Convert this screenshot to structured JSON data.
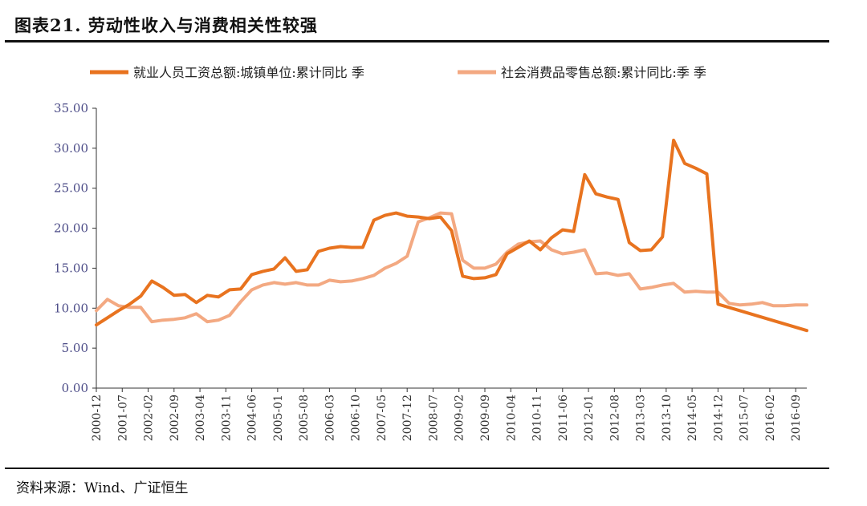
{
  "header": {
    "title": "图表21.  劳动性收入与消费相关性较强"
  },
  "footer": {
    "source": "资料来源：Wind、广证恒生"
  },
  "colors": {
    "series1": "#E8731F",
    "series2": "#F3A982",
    "axis": "#333333",
    "text": "#222222"
  },
  "chart_data": {
    "type": "line",
    "title": "",
    "xlabel": "",
    "ylabel": "",
    "ylim": [
      0,
      35
    ],
    "yticks": [
      "35.00",
      "30.00",
      "25.00",
      "20.00",
      "15.00",
      "10.00",
      "5.00",
      "0.00"
    ],
    "xticks": [
      "2000-12",
      "2001-07",
      "2002-02",
      "2002-09",
      "2003-04",
      "2003-11",
      "2004-06",
      "2005-01",
      "2005-08",
      "2006-03",
      "2006-10",
      "2007-05",
      "2007-12",
      "2008-07",
      "2009-02",
      "2009-09",
      "2010-04",
      "2010-11",
      "2011-06",
      "2012-01",
      "2012-08",
      "2013-03",
      "2013-10",
      "2014-05",
      "2014-12",
      "2015-07",
      "2016-02",
      "2016-09"
    ],
    "grid": false,
    "legend_position": "top",
    "series": [
      {
        "name": "就业人员工资总额:城镇单位:累计同比 季",
        "points": [
          [
            "2000-12",
            7.9
          ],
          [
            "2001-03",
            8.8
          ],
          [
            "2001-06",
            9.7
          ],
          [
            "2001-09",
            10.5
          ],
          [
            "2001-12",
            11.5
          ],
          [
            "2002-03",
            13.4
          ],
          [
            "2002-06",
            12.6
          ],
          [
            "2002-09",
            11.6
          ],
          [
            "2002-12",
            11.7
          ],
          [
            "2003-03",
            10.7
          ],
          [
            "2003-06",
            11.6
          ],
          [
            "2003-09",
            11.4
          ],
          [
            "2003-12",
            12.3
          ],
          [
            "2004-03",
            12.4
          ],
          [
            "2004-06",
            14.2
          ],
          [
            "2004-09",
            14.6
          ],
          [
            "2004-12",
            14.9
          ],
          [
            "2005-03",
            16.3
          ],
          [
            "2005-06",
            14.6
          ],
          [
            "2005-09",
            14.8
          ],
          [
            "2005-12",
            17.1
          ],
          [
            "2006-03",
            17.5
          ],
          [
            "2006-06",
            17.7
          ],
          [
            "2006-09",
            17.6
          ],
          [
            "2006-12",
            17.6
          ],
          [
            "2007-03",
            21.0
          ],
          [
            "2007-06",
            21.6
          ],
          [
            "2007-09",
            21.9
          ],
          [
            "2007-12",
            21.5
          ],
          [
            "2008-03",
            21.4
          ],
          [
            "2008-06",
            21.2
          ],
          [
            "2008-09",
            21.4
          ],
          [
            "2008-12",
            19.7
          ],
          [
            "2009-03",
            14.0
          ],
          [
            "2009-06",
            13.7
          ],
          [
            "2009-09",
            13.8
          ],
          [
            "2009-12",
            14.2
          ],
          [
            "2010-03",
            16.8
          ],
          [
            "2010-06",
            17.6
          ],
          [
            "2010-09",
            18.4
          ],
          [
            "2010-12",
            17.3
          ],
          [
            "2011-03",
            18.8
          ],
          [
            "2011-06",
            19.8
          ],
          [
            "2011-09",
            19.6
          ],
          [
            "2011-12",
            26.7
          ],
          [
            "2012-03",
            24.3
          ],
          [
            "2012-06",
            23.9
          ],
          [
            "2012-09",
            23.6
          ],
          [
            "2012-12",
            18.2
          ],
          [
            "2013-03",
            17.2
          ],
          [
            "2013-06",
            17.3
          ],
          [
            "2013-09",
            18.9
          ],
          [
            "2013-12",
            31.0
          ],
          [
            "2014-03",
            28.1
          ],
          [
            "2014-06",
            27.5
          ],
          [
            "2014-09",
            26.8
          ],
          [
            "2014-12",
            10.5
          ],
          [
            "2016-12",
            7.2
          ]
        ]
      },
      {
        "name": "社会消费品零售总额:累计同比:季 季",
        "points": [
          [
            "2000-12",
            9.7
          ],
          [
            "2001-03",
            11.1
          ],
          [
            "2001-06",
            10.3
          ],
          [
            "2001-09",
            10.1
          ],
          [
            "2001-12",
            10.1
          ],
          [
            "2002-03",
            8.3
          ],
          [
            "2002-06",
            8.5
          ],
          [
            "2002-09",
            8.6
          ],
          [
            "2002-12",
            8.8
          ],
          [
            "2003-03",
            9.3
          ],
          [
            "2003-06",
            8.3
          ],
          [
            "2003-09",
            8.5
          ],
          [
            "2003-12",
            9.1
          ],
          [
            "2004-03",
            10.8
          ],
          [
            "2004-06",
            12.3
          ],
          [
            "2004-09",
            12.9
          ],
          [
            "2004-12",
            13.2
          ],
          [
            "2005-03",
            13.0
          ],
          [
            "2005-06",
            13.2
          ],
          [
            "2005-09",
            12.9
          ],
          [
            "2005-12",
            12.9
          ],
          [
            "2006-03",
            13.5
          ],
          [
            "2006-06",
            13.3
          ],
          [
            "2006-09",
            13.4
          ],
          [
            "2006-12",
            13.7
          ],
          [
            "2007-03",
            14.1
          ],
          [
            "2007-06",
            15.0
          ],
          [
            "2007-09",
            15.6
          ],
          [
            "2007-12",
            16.5
          ],
          [
            "2008-03",
            20.8
          ],
          [
            "2008-06",
            21.3
          ],
          [
            "2008-09",
            21.9
          ],
          [
            "2008-12",
            21.8
          ],
          [
            "2009-03",
            16.0
          ],
          [
            "2009-06",
            15.0
          ],
          [
            "2009-09",
            15.0
          ],
          [
            "2009-12",
            15.5
          ],
          [
            "2010-03",
            17.0
          ],
          [
            "2010-06",
            18.0
          ],
          [
            "2010-09",
            18.3
          ],
          [
            "2010-12",
            18.4
          ],
          [
            "2011-03",
            17.3
          ],
          [
            "2011-06",
            16.8
          ],
          [
            "2011-09",
            17.0
          ],
          [
            "2011-12",
            17.3
          ],
          [
            "2012-03",
            14.3
          ],
          [
            "2012-06",
            14.4
          ],
          [
            "2012-09",
            14.1
          ],
          [
            "2012-12",
            14.3
          ],
          [
            "2013-03",
            12.4
          ],
          [
            "2013-06",
            12.6
          ],
          [
            "2013-09",
            12.9
          ],
          [
            "2013-12",
            13.1
          ],
          [
            "2014-03",
            12.0
          ],
          [
            "2014-06",
            12.1
          ],
          [
            "2014-09",
            12.0
          ],
          [
            "2014-12",
            12.0
          ],
          [
            "2015-03",
            10.6
          ],
          [
            "2015-06",
            10.4
          ],
          [
            "2015-09",
            10.5
          ],
          [
            "2015-12",
            10.7
          ],
          [
            "2016-03",
            10.3
          ],
          [
            "2016-06",
            10.3
          ],
          [
            "2016-09",
            10.4
          ],
          [
            "2016-12",
            10.4
          ]
        ]
      }
    ]
  }
}
